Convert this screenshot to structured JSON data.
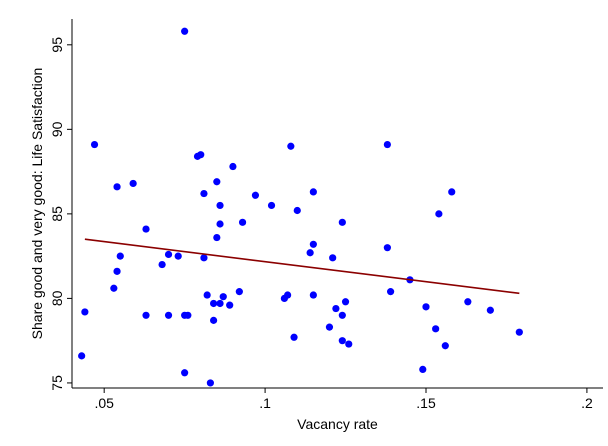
{
  "chart_data": {
    "type": "scatter",
    "title": "",
    "xlabel": "Vacancy rate",
    "ylabel": "Share good and very good: Life Satisfaction",
    "xlim": [
      0.04,
      0.205
    ],
    "ylim": [
      74.7,
      97
    ],
    "xticks": [
      0.05,
      0.1,
      0.15,
      0.2
    ],
    "xtick_labels": [
      ".05",
      ".1",
      ".15",
      ".2"
    ],
    "yticks": [
      75,
      80,
      85,
      90,
      95
    ],
    "ytick_labels": [
      "75",
      "80",
      "85",
      "90",
      "95"
    ],
    "grid": false,
    "legend": "none",
    "point_color": "#0000ff",
    "fit_line_color": "#8b0000",
    "series": [
      {
        "kind": "points",
        "x": [
          0.043,
          0.044,
          0.047,
          0.053,
          0.054,
          0.054,
          0.055,
          0.059,
          0.063,
          0.063,
          0.068,
          0.07,
          0.07,
          0.073,
          0.075,
          0.075,
          0.075,
          0.076,
          0.079,
          0.08,
          0.081,
          0.081,
          0.082,
          0.083,
          0.084,
          0.084,
          0.085,
          0.085,
          0.086,
          0.086,
          0.086,
          0.087,
          0.089,
          0.09,
          0.092,
          0.093,
          0.097,
          0.102,
          0.106,
          0.107,
          0.108,
          0.109,
          0.11,
          0.114,
          0.115,
          0.115,
          0.115,
          0.12,
          0.121,
          0.122,
          0.124,
          0.124,
          0.124,
          0.125,
          0.126,
          0.138,
          0.138,
          0.139,
          0.145,
          0.149,
          0.15,
          0.153,
          0.154,
          0.156,
          0.158,
          0.163,
          0.17,
          0.179
        ],
        "y": [
          76.6,
          79.2,
          89.1,
          80.6,
          81.6,
          86.6,
          82.5,
          86.8,
          84.1,
          79.0,
          82.0,
          82.6,
          79.0,
          82.5,
          95.8,
          79.0,
          75.6,
          79.0,
          88.4,
          88.5,
          82.4,
          86.2,
          80.2,
          75.0,
          79.7,
          78.7,
          86.9,
          83.6,
          84.4,
          85.5,
          79.7,
          80.1,
          79.6,
          87.8,
          80.4,
          84.5,
          86.1,
          85.5,
          80.0,
          80.2,
          89.0,
          77.7,
          85.2,
          82.7,
          83.2,
          86.3,
          80.2,
          78.3,
          82.4,
          79.4,
          79.0,
          84.5,
          77.5,
          79.8,
          77.3,
          83.0,
          89.1,
          80.4,
          81.1,
          75.8,
          79.5,
          78.2,
          85.0,
          77.2,
          86.3,
          79.8,
          79.3,
          78.0
        ]
      },
      {
        "kind": "fit_line",
        "x": [
          0.044,
          0.179
        ],
        "y": [
          83.5,
          80.3
        ]
      }
    ]
  }
}
